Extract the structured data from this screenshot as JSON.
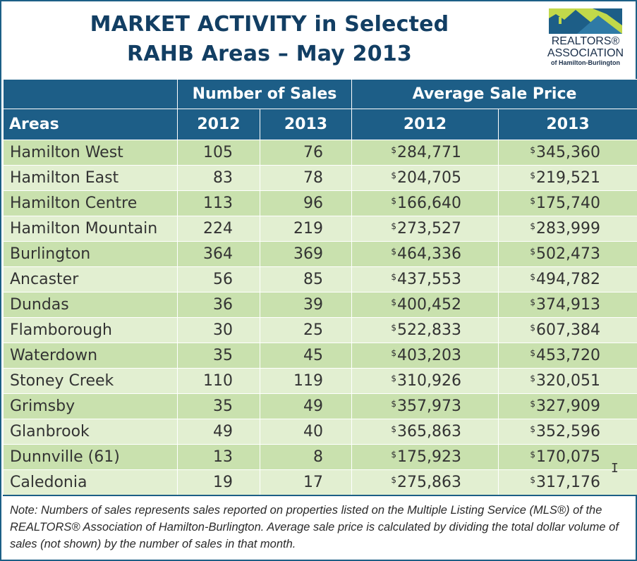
{
  "title": {
    "line1": "MARKET ACTIVITY in Selected",
    "line2": "RAHB Areas – May 2013"
  },
  "logo": {
    "line1": "REALTORS®",
    "line2": "ASSOCIATION",
    "line3": "of Hamilton-Burlington"
  },
  "colors": {
    "header_bg": "#1d5e87",
    "title_text": "#123e63",
    "row_dark": "#c9e1ae",
    "row_light": "#e2efd1"
  },
  "table": {
    "group_headers": {
      "sales": "Number of Sales",
      "price": "Average Sale Price"
    },
    "column_headers": {
      "areas": "Areas",
      "sales_2012": "2012",
      "sales_2013": "2013",
      "price_2012": "2012",
      "price_2013": "2013"
    },
    "currency_symbol": "$",
    "rows": [
      {
        "area": "Hamilton West",
        "sales_2012": "105",
        "sales_2013": "76",
        "price_2012": "284,771",
        "price_2013": "345,360"
      },
      {
        "area": "Hamilton East",
        "sales_2012": "83",
        "sales_2013": "78",
        "price_2012": "204,705",
        "price_2013": "219,521"
      },
      {
        "area": "Hamilton Centre",
        "sales_2012": "113",
        "sales_2013": "96",
        "price_2012": "166,640",
        "price_2013": "175,740"
      },
      {
        "area": "Hamilton Mountain",
        "sales_2012": "224",
        "sales_2013": "219",
        "price_2012": "273,527",
        "price_2013": "283,999"
      },
      {
        "area": "Burlington",
        "sales_2012": "364",
        "sales_2013": "369",
        "price_2012": "464,336",
        "price_2013": "502,473"
      },
      {
        "area": "Ancaster",
        "sales_2012": "56",
        "sales_2013": "85",
        "price_2012": "437,553",
        "price_2013": "494,782"
      },
      {
        "area": "Dundas",
        "sales_2012": "36",
        "sales_2013": "39",
        "price_2012": "400,452",
        "price_2013": "374,913"
      },
      {
        "area": "Flamborough",
        "sales_2012": "30",
        "sales_2013": "25",
        "price_2012": "522,833",
        "price_2013": "607,384"
      },
      {
        "area": "Waterdown",
        "sales_2012": "35",
        "sales_2013": "45",
        "price_2012": "403,203",
        "price_2013": "453,720"
      },
      {
        "area": "Stoney Creek",
        "sales_2012": "110",
        "sales_2013": "119",
        "price_2012": "310,926",
        "price_2013": "320,051"
      },
      {
        "area": "Grimsby",
        "sales_2012": "35",
        "sales_2013": "49",
        "price_2012": "357,973",
        "price_2013": "327,909"
      },
      {
        "area": "Glanbrook",
        "sales_2012": "49",
        "sales_2013": "40",
        "price_2012": "365,863",
        "price_2013": "352,596"
      },
      {
        "area": "Dunnville (61)",
        "sales_2012": "13",
        "sales_2013": "8",
        "price_2012": "175,923",
        "price_2013": "170,075"
      },
      {
        "area": "Caledonia",
        "sales_2012": "19",
        "sales_2013": "17",
        "price_2012": "275,863",
        "price_2013": "317,176"
      }
    ]
  },
  "note": "Note:  Numbers of sales represents sales reported on properties listed on the Multiple Listing Service (MLS®) of the REALTORS® Association of Hamilton-Burlington.  Average sale price is calculated by dividing the total dollar volume of sales (not shown) by the number of sales in that month."
}
